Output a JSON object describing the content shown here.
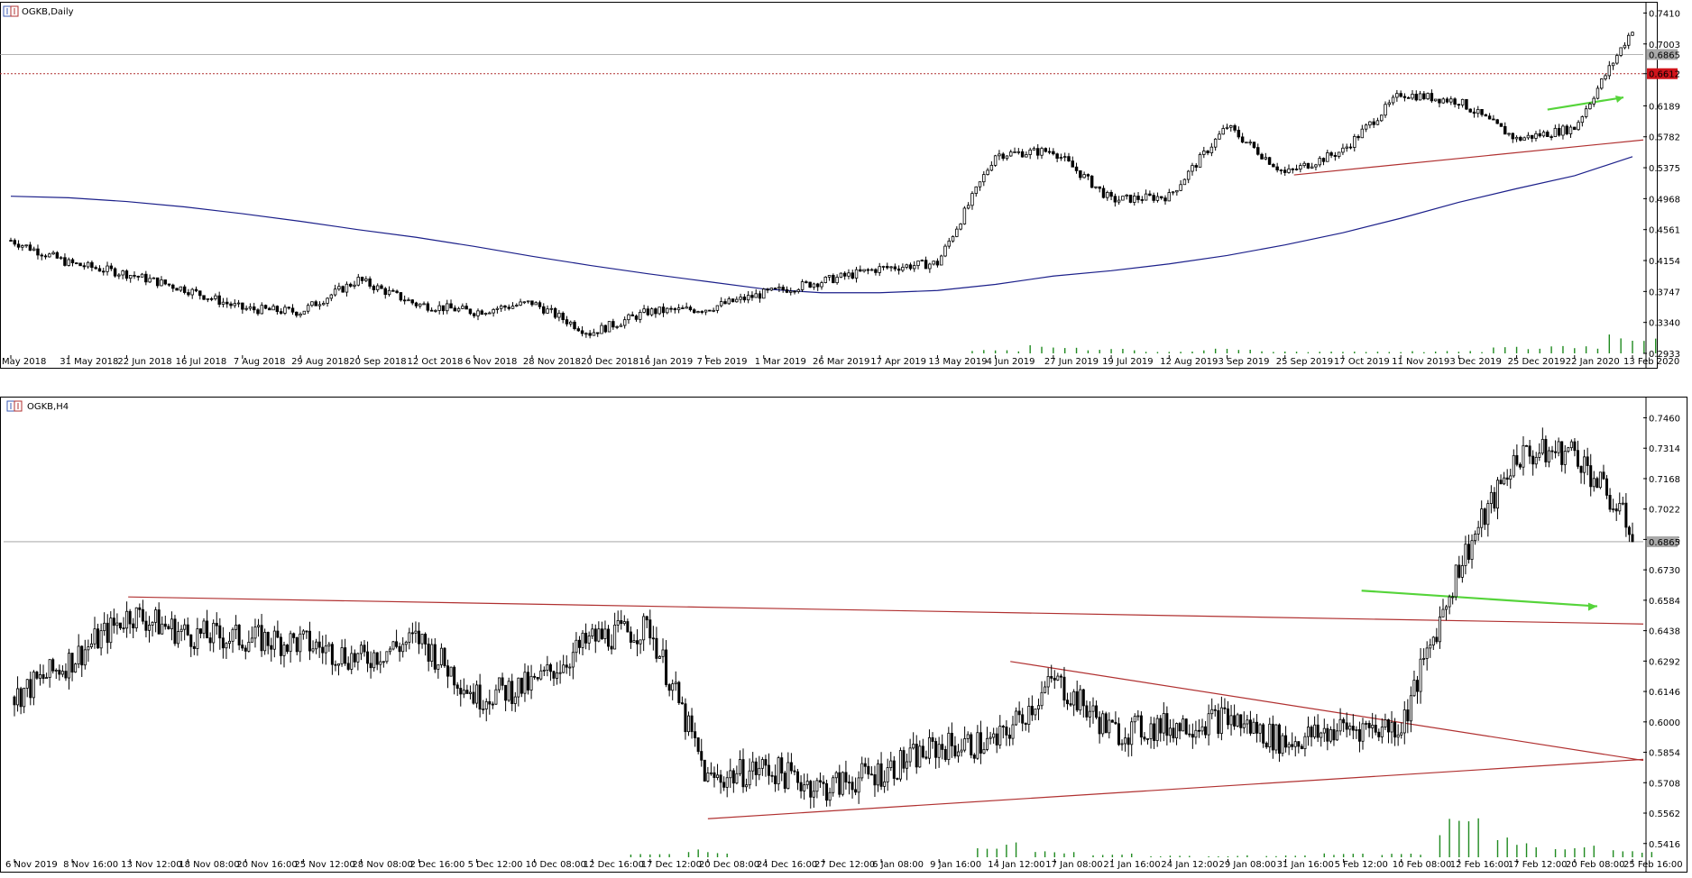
{
  "panels": [
    {
      "title": "OGKB,Daily",
      "price_tag": "0.6865",
      "level_tag": "0.6612",
      "y_ticks": [
        "0.7410",
        "0.7003",
        "0.6612",
        "0.6189",
        "0.5782",
        "0.5375",
        "0.4968",
        "0.4561",
        "0.4154",
        "0.3747",
        "0.3340",
        "0.2933"
      ],
      "x_ticks": [
        "May 2018",
        "31 May 2018",
        "22 Jun 2018",
        "16 Jul 2018",
        "7 Aug 2018",
        "29 Aug 2018",
        "20 Sep 2018",
        "12 Oct 2018",
        "6 Nov 2018",
        "28 Nov 2018",
        "20 Dec 2018",
        "16 Jan 2019",
        "7 Feb 2019",
        "1 Mar 2019",
        "26 Mar 2019",
        "17 Apr 2019",
        "13 May 2019",
        "4 Jun 2019",
        "27 Jun 2019",
        "19 Jul 2019",
        "12 Aug 2019",
        "3 Sep 2019",
        "25 Sep 2019",
        "17 Oct 2019",
        "11 Nov 2019",
        "3 Dec 2019",
        "25 Dec 2019",
        "22 Jan 2020",
        "13 Feb 2020"
      ]
    },
    {
      "title": "OGKB,H4",
      "price_tag": "0.6865",
      "y_ticks": [
        "0.7460",
        "0.7314",
        "0.7168",
        "0.7022",
        "0.6876",
        "0.6730",
        "0.6584",
        "0.6438",
        "0.6292",
        "0.6146",
        "0.6000",
        "0.5854",
        "0.5708",
        "0.5562",
        "0.5416"
      ],
      "x_ticks": [
        "6 Nov 2019",
        "8 Nov 16:00",
        "13 Nov 12:00",
        "18 Nov 08:00",
        "20 Nov 16:00",
        "25 Nov 12:00",
        "28 Nov 08:00",
        "2 Dec 16:00",
        "5 Dec 12:00",
        "10 Dec 08:00",
        "12 Dec 16:00",
        "17 Dec 12:00",
        "20 Dec 08:00",
        "24 Dec 16:00",
        "27 Dec 12:00",
        "6 Jan 08:00",
        "9 Jan 16:00",
        "14 Jan 12:00",
        "17 Jan 08:00",
        "21 Jan 16:00",
        "24 Jan 12:00",
        "29 Jan 08:00",
        "31 Jan 16:00",
        "5 Feb 12:00",
        "10 Feb 08:00",
        "12 Feb 16:00",
        "17 Feb 12:00",
        "20 Feb 08:00",
        "25 Feb 16:00"
      ]
    }
  ],
  "chart_data": [
    {
      "type": "candlestick",
      "title": "OGKB,Daily",
      "ylim": [
        0.2933,
        0.751
      ],
      "level_line": 0.6612,
      "current_price": 0.6865,
      "x": [
        "May 2018",
        "31 May 2018",
        "22 Jun 2018",
        "16 Jul 2018",
        "7 Aug 2018",
        "29 Aug 2018",
        "20 Sep 2018",
        "12 Oct 2018",
        "6 Nov 2018",
        "28 Nov 2018",
        "20 Dec 2018",
        "16 Jan 2019",
        "7 Feb 2019",
        "1 Mar 2019",
        "26 Mar 2019",
        "17 Apr 2019",
        "13 May 2019",
        "4 Jun 2019",
        "27 Jun 2019",
        "19 Jul 2019",
        "12 Aug 2019",
        "3 Sep 2019",
        "25 Sep 2019",
        "17 Oct 2019",
        "11 Nov 2019",
        "3 Dec 2019",
        "25 Dec 2019",
        "22 Jan 2020",
        "13 Feb 2020"
      ],
      "close": [
        0.442,
        0.412,
        0.398,
        0.378,
        0.352,
        0.348,
        0.39,
        0.358,
        0.348,
        0.36,
        0.32,
        0.348,
        0.352,
        0.372,
        0.388,
        0.405,
        0.412,
        0.555,
        0.56,
        0.495,
        0.5,
        0.592,
        0.53,
        0.56,
        0.635,
        0.625,
        0.575,
        0.59,
        0.72
      ],
      "moving_average": [
        0.5,
        0.498,
        0.493,
        0.486,
        0.477,
        0.467,
        0.456,
        0.446,
        0.434,
        0.421,
        0.409,
        0.398,
        0.388,
        0.378,
        0.373,
        0.373,
        0.376,
        0.384,
        0.395,
        0.402,
        0.411,
        0.422,
        0.436,
        0.452,
        0.471,
        0.492,
        0.51,
        0.527,
        0.552
      ],
      "volume": [
        0,
        0,
        0,
        0,
        0,
        0,
        0,
        0,
        0,
        0,
        0,
        0,
        0,
        0,
        0,
        0,
        0,
        0.15,
        0.35,
        0.25,
        0.1,
        0.2,
        0.1,
        0.1,
        0.1,
        0.1,
        0.3,
        0.4,
        1.0
      ]
    },
    {
      "type": "candlestick",
      "title": "OGKB,H4",
      "ylim": [
        0.535,
        0.754
      ],
      "current_price": 0.6865,
      "x": [
        "6 Nov 2019",
        "8 Nov 16:00",
        "13 Nov 12:00",
        "18 Nov 08:00",
        "20 Nov 16:00",
        "25 Nov 12:00",
        "28 Nov 08:00",
        "2 Dec 16:00",
        "5 Dec 12:00",
        "10 Dec 08:00",
        "12 Dec 16:00",
        "17 Dec 12:00",
        "20 Dec 08:00",
        "24 Dec 16:00",
        "27 Dec 12:00",
        "6 Jan 08:00",
        "9 Jan 16:00",
        "14 Jan 12:00",
        "17 Jan 08:00",
        "21 Jan 16:00",
        "24 Jan 12:00",
        "29 Jan 08:00",
        "31 Jan 16:00",
        "5 Feb 12:00",
        "10 Feb 08:00",
        "12 Feb 16:00",
        "17 Feb 12:00",
        "20 Feb 08:00",
        "25 Feb 16:00"
      ],
      "close": [
        0.612,
        0.63,
        0.652,
        0.642,
        0.64,
        0.638,
        0.63,
        0.64,
        0.612,
        0.618,
        0.64,
        0.645,
        0.572,
        0.578,
        0.568,
        0.576,
        0.588,
        0.59,
        0.62,
        0.595,
        0.598,
        0.602,
        0.59,
        0.597,
        0.598,
        0.675,
        0.728,
        0.73,
        0.692
      ],
      "volume": [
        0,
        0,
        0,
        0,
        0,
        0,
        0,
        0,
        0,
        0,
        0,
        0.1,
        0.2,
        0,
        0,
        0,
        0,
        0.4,
        0.15,
        0.1,
        0.05,
        0.05,
        0.05,
        0.1,
        0.1,
        1.0,
        0.5,
        0.3,
        0.2
      ]
    }
  ]
}
